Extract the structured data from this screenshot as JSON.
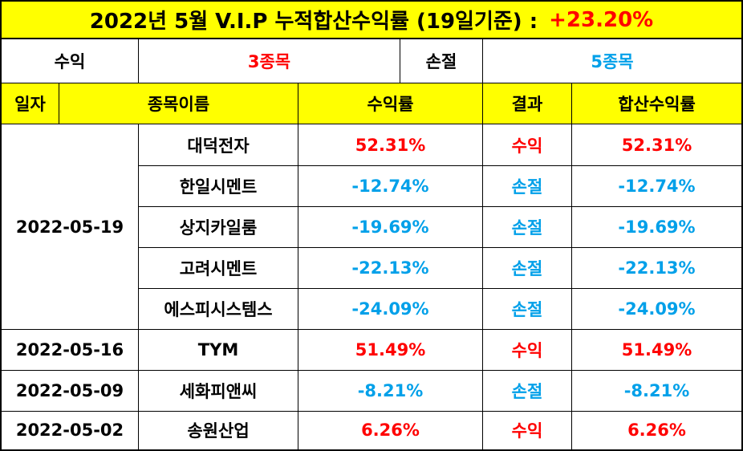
{
  "title": {
    "text": "2022년 5월 V.I.P 누적합산수익률 (19일기준) :",
    "value": "+23.20%"
  },
  "summary": {
    "profit_label": "수익",
    "profit_count": "3종목",
    "loss_label": "손절",
    "loss_count": "5종목"
  },
  "headers": {
    "date": "일자",
    "name": "종목이름",
    "rate": "수익률",
    "result": "결과",
    "cumulative": "합산수익률"
  },
  "groups": [
    {
      "date": "2022-05-19",
      "rows": [
        {
          "name": "대덕전자",
          "rate": "52.31%",
          "result": "수익",
          "cumulative": "52.31%",
          "positive": true
        },
        {
          "name": "한일시멘트",
          "rate": "-12.74%",
          "result": "손절",
          "cumulative": "-12.74%",
          "positive": false
        },
        {
          "name": "상지카일룸",
          "rate": "-19.69%",
          "result": "손절",
          "cumulative": "-19.69%",
          "positive": false
        },
        {
          "name": "고려시멘트",
          "rate": "-22.13%",
          "result": "손절",
          "cumulative": "-22.13%",
          "positive": false
        },
        {
          "name": "에스피시스템스",
          "rate": "-24.09%",
          "result": "손절",
          "cumulative": "-24.09%",
          "positive": false
        }
      ]
    },
    {
      "date": "2022-05-16",
      "rows": [
        {
          "name": "TYM",
          "rate": "51.49%",
          "result": "수익",
          "cumulative": "51.49%",
          "positive": true
        }
      ]
    },
    {
      "date": "2022-05-09",
      "rows": [
        {
          "name": "세화피앤씨",
          "rate": "-8.21%",
          "result": "손절",
          "cumulative": "-8.21%",
          "positive": false
        }
      ]
    },
    {
      "date": "2022-05-02",
      "rows": [
        {
          "name": "송원산업",
          "rate": "6.26%",
          "result": "수익",
          "cumulative": "6.26%",
          "positive": true
        }
      ]
    }
  ],
  "colors": {
    "header_bg": "#ffff00",
    "positive": "#ff0000",
    "negative": "#00a0e9"
  }
}
